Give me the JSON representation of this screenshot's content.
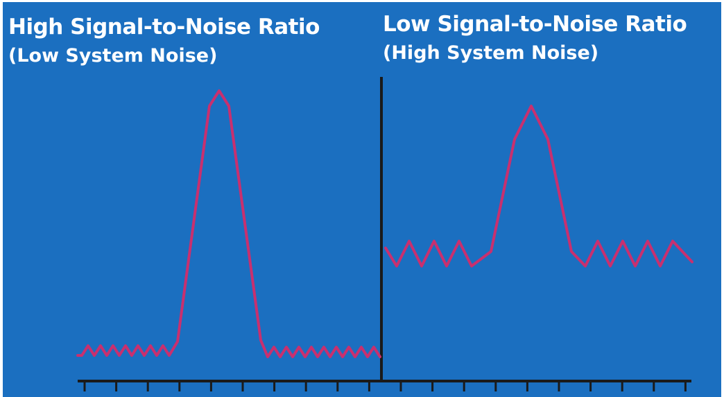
{
  "left_panel": {
    "title": "High Signal-to-Noise Ratio",
    "subtitle": "(Low System Noise)"
  },
  "right_panel": {
    "title": "Low Signal-to-Noise Ratio",
    "subtitle": "(High System Noise)"
  },
  "colors": {
    "background": "#1b6fc0",
    "signal": "#c8306f",
    "axis": "#1a1a1a",
    "text": "#ffffff"
  }
}
